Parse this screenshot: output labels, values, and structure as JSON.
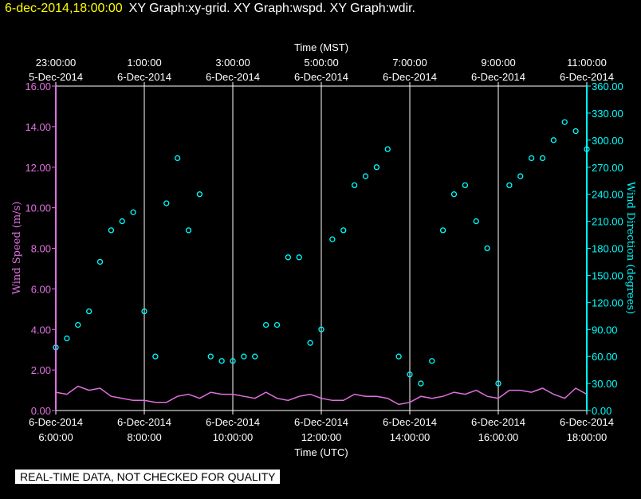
{
  "header": {
    "date_time": "6-dec-2014,18:00:00",
    "graphs": "XY Graph:xy-grid.  XY Graph:wspd.  XY Graph:wdir."
  },
  "notice": "REAL-TIME DATA, NOT CHECKED FOR QUALITY",
  "colors": {
    "wspd": "#e070e0",
    "wdir": "#00ffff",
    "grid": "#ffffff",
    "title_date": "#ffff00"
  },
  "chart_data": {
    "type": "scatter",
    "top_axis": {
      "title": "Time (MST)",
      "ticks": [
        {
          "time": "23:00:00",
          "date": "5-Dec-2014"
        },
        {
          "time": "1:00:00",
          "date": "6-Dec-2014"
        },
        {
          "time": "3:00:00",
          "date": "6-Dec-2014"
        },
        {
          "time": "5:00:00",
          "date": "6-Dec-2014"
        },
        {
          "time": "7:00:00",
          "date": "6-Dec-2014"
        },
        {
          "time": "9:00:00",
          "date": "6-Dec-2014"
        },
        {
          "time": "11:00:00",
          "date": "6-Dec-2014"
        }
      ]
    },
    "bottom_axis": {
      "title": "Time (UTC)",
      "range_hours": [
        6,
        18
      ],
      "ticks": [
        {
          "date": "6-Dec-2014",
          "time": "6:00:00"
        },
        {
          "date": "6-Dec-2014",
          "time": "8:00:00"
        },
        {
          "date": "6-Dec-2014",
          "time": "10:00:00"
        },
        {
          "date": "6-Dec-2014",
          "time": "12:00:00"
        },
        {
          "date": "6-Dec-2014",
          "time": "14:00:00"
        },
        {
          "date": "6-Dec-2014",
          "time": "16:00:00"
        },
        {
          "date": "6-Dec-2014",
          "time": "18:00:00"
        }
      ]
    },
    "left_axis": {
      "title": "Wind Speed (m/s)",
      "range": [
        0,
        16
      ],
      "ticks": [
        "0.00",
        "2.00",
        "4.00",
        "6.00",
        "8.00",
        "10.00",
        "12.00",
        "14.00",
        "16.00"
      ]
    },
    "right_axis": {
      "title": "Wind Direction (degrees)",
      "range": [
        0,
        360
      ],
      "ticks": [
        "0.00",
        "30.00",
        "60.00",
        "90.00",
        "120.00",
        "150.00",
        "180.00",
        "210.00",
        "240.00",
        "270.00",
        "300.00",
        "330.00",
        "360.00"
      ]
    },
    "grid_vertical_hours_utc": [
      8,
      10,
      12,
      14,
      16
    ],
    "series": [
      {
        "name": "wspd",
        "axis": "left",
        "style": "line",
        "x_hours_utc": [
          6.0,
          6.25,
          6.5,
          6.75,
          7.0,
          7.25,
          7.5,
          7.75,
          8.0,
          8.25,
          8.5,
          8.75,
          9.0,
          9.25,
          9.5,
          9.75,
          10.0,
          10.25,
          10.5,
          10.75,
          11.0,
          11.25,
          11.5,
          11.75,
          12.0,
          12.25,
          12.5,
          12.75,
          13.0,
          13.25,
          13.5,
          13.75,
          14.0,
          14.25,
          14.5,
          14.75,
          15.0,
          15.25,
          15.5,
          15.75,
          16.0,
          16.25,
          16.5,
          16.75,
          17.0,
          17.25,
          17.5,
          17.75,
          18.0
        ],
        "values": [
          0.9,
          0.8,
          1.2,
          1.0,
          1.1,
          0.7,
          0.6,
          0.5,
          0.5,
          0.4,
          0.4,
          0.7,
          0.8,
          0.6,
          0.9,
          0.8,
          0.8,
          0.7,
          0.6,
          0.9,
          0.6,
          0.5,
          0.7,
          0.8,
          0.6,
          0.5,
          0.5,
          0.8,
          0.7,
          0.7,
          0.6,
          0.3,
          0.4,
          0.7,
          0.6,
          0.7,
          0.9,
          0.8,
          1.0,
          0.7,
          0.6,
          1.0,
          1.0,
          0.9,
          1.1,
          0.8,
          0.6,
          1.1,
          0.8
        ]
      },
      {
        "name": "wdir",
        "axis": "right",
        "style": "circles",
        "x_hours_utc": [
          6.0,
          6.25,
          6.5,
          6.75,
          7.0,
          7.25,
          7.5,
          7.75,
          8.0,
          8.25,
          8.5,
          8.75,
          9.0,
          9.25,
          9.5,
          9.75,
          10.0,
          10.25,
          10.5,
          10.75,
          11.0,
          11.25,
          11.5,
          11.75,
          12.0,
          12.25,
          12.5,
          12.75,
          13.0,
          13.25,
          13.5,
          13.75,
          14.0,
          14.25,
          14.5,
          14.75,
          15.0,
          15.25,
          15.5,
          15.75,
          16.0,
          16.25,
          16.5,
          16.75,
          17.0,
          17.25,
          17.5,
          17.75,
          18.0
        ],
        "values": [
          70,
          80,
          95,
          110,
          165,
          200,
          210,
          220,
          110,
          60,
          230,
          280,
          200,
          240,
          60,
          55,
          55,
          60,
          60,
          95,
          95,
          170,
          170,
          75,
          90,
          190,
          200,
          250,
          260,
          270,
          290,
          60,
          40,
          30,
          55,
          200,
          240,
          250,
          210,
          180,
          30,
          250,
          260,
          280,
          280,
          300,
          320,
          310,
          290
        ]
      }
    ]
  }
}
